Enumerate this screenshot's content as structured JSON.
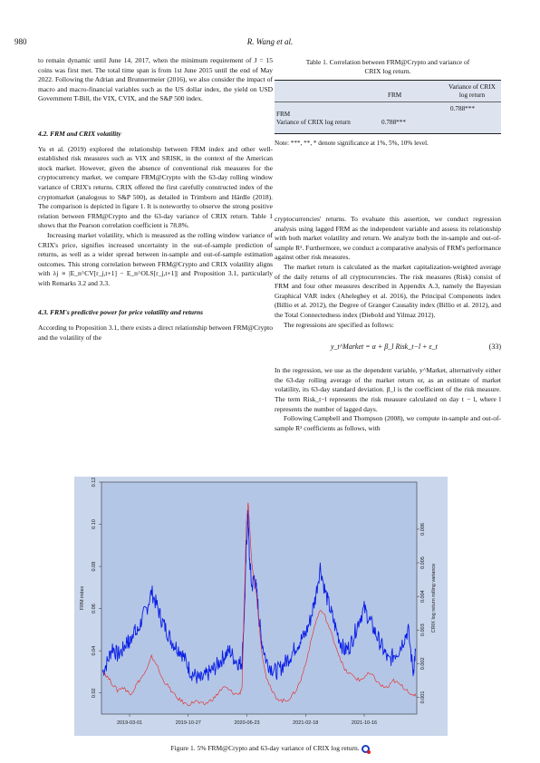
{
  "header": {
    "page_number": "980",
    "running_title": "R. Wang et al."
  },
  "left_column": {
    "intro_paragraph": "to remain dynamic until June 14, 2017, when the minimum requirement of J = 15 coins was first met. The total time span is from 1st June 2015 until the end of May 2022. Following the Adrian and Brunnermeier (2016), we also consider the impact of macro and macro-financial variables such as the US dollar index, the yield on USD Government T-Bill, the VIX, CVIX, and the S&P 500 index.",
    "section_42_title": "4.2.  FRM and CRIX volatility",
    "section_42_p1": "Yu et al. (2019) explored the relationship between FRM index and other well-established risk measures such as VIX and SRISK, in the context of the American stock market. However, given the absence of conventional risk measures for the cryptocurrency market, we compare FRM@Crypto with the 63-day rolling window variance of CRIX's returns. CRIX offered the first carefully constructed index of the cryptomarket (analogous to S&P 500), as detailed in Trimborn and Härdle (2018). The comparison is depicted in figure 1. It is noteworthy to observe the strong positive relation between FRM@Crypto and the 63-day variance of CRIX return. Table 1 shows that the Pearson correlation coefficient is 78.8%.",
    "section_42_p2": "Increasing market volatility, which is measured as the rolling window variance of CRIX's price, signifies increased uncertainty in the out-of-sample prediction of returns, as well as a wider spread between in-sample and out-of-sample estimation outcomes. This strong correlation between FRM@Crypto and CRIX volatility aligns with λj ∝ |E_n^CV[r_j,t+1] − E_n^OLS[r_j,t+1]| and Proposition 3.1, particularly with Remarks 3.2 and 3.3.",
    "section_43_title": "4.3.  FRM's predictive power for price volatility and returns",
    "section_43_p1": "According to Proposition 3.1, there exists a direct relationship between FRM@Crypto and the volatility of the"
  },
  "right_column": {
    "p1": "cryptocurrencies' returns. To evaluate this assertion, we conduct regression analysis using lagged FRM as the independent variable and assess its relationship with both market volatility and return. We analyze both the in-sample and out-of-sample R². Furthermore, we conduct a comparative analysis of FRM's performance against other risk measures.",
    "p2": "The market return is calculated as the market capitalization-weighted average of the daily returns of all cryptocurrencies. The risk measures (Risk) consist of FRM and four other measures described in Appendix A.3, namely the Bayesian Graphical VAR index (Ahelegbey et al. 2016), the Principal Components index (Billio et al. 2012), the Degree of Granger Causality index (Billio et al. 2012), and the Total Connectedness index (Diebold and Yilmaz 2012).",
    "p3": "The regressions are specified as follows:",
    "equation": "y_t^Market = α + β_l Risk_t−l + ε_t",
    "equation_number": "(33)",
    "p4": "In the regression, we use as the dependent variable, y^Market, alternatively either the 63-day rolling average of the market return or, as an estimate of market volatility, its 63-day standard deviation. β_l is the coefficient of the risk measure. The term Risk_t−l represents the risk measure calculated on day t − l, where l represents the number of lagged days.",
    "p5": "Following Campbell and Thompson (2008), we compute in-sample and out-of-sample R² coefficients as follows, with"
  },
  "table": {
    "caption_line1": "Table 1.  Correlation between FRM@Crypto and variance of",
    "caption_line2": "CRIX log return.",
    "col_header_1": "FRM",
    "col_header_2_line1": "Variance of CRIX",
    "col_header_2_line2": "log return",
    "row1_label": "FRM",
    "row1_value": "0.788***",
    "row2_label": "Variance of CRIX log return",
    "row2_value": "0.788***",
    "note": "Note: ***, **, * denote significance at 1%, 5%, 10% level."
  },
  "figure": {
    "caption": "Figure 1.  5% FRM@Crypto and 63-day variance of CRIX log return.",
    "icon": "quantlet-q-icon"
  },
  "chart_data": {
    "type": "line",
    "title": "",
    "xlabel": "",
    "ylabel": "FRM index",
    "y2label": "CRIX log return rolling variance",
    "x_tick_labels": [
      "2019-03-01",
      "2019-10-27",
      "2020-06-23",
      "2021-02-18",
      "2021-10-16"
    ],
    "x_ticks_days": [
      0,
      240,
      480,
      720,
      960
    ],
    "xlim_days": [
      -115,
      1175
    ],
    "ylim": [
      0.01,
      0.12
    ],
    "y_ticks": [
      "0.02",
      "0.04",
      "0.06",
      "0.08",
      "0.10",
      "0.12"
    ],
    "y2lim": [
      0.0005,
      0.0074
    ],
    "y2_ticks": [
      "0.001",
      "0.002",
      "0.003",
      "0.004",
      "0.005",
      "0.006"
    ],
    "background_color": "#b4c6e6",
    "series": [
      {
        "axis": "left",
        "color": "#0a1ee6",
        "x": [
          -110,
          -90,
          -70,
          -50,
          -30,
          -10,
          0,
          15,
          30,
          50,
          70,
          90,
          110,
          130,
          150,
          170,
          190,
          210,
          230,
          250,
          270,
          290,
          310,
          330,
          350,
          370,
          390,
          410,
          430,
          450,
          460,
          470,
          478,
          485,
          490,
          500,
          510,
          520,
          530,
          540,
          560,
          580,
          600,
          620,
          640,
          660,
          680,
          700,
          720,
          740,
          760,
          780,
          800,
          820,
          840,
          860,
          880,
          900,
          920,
          940,
          960,
          980,
          1000,
          1020,
          1040,
          1060,
          1080,
          1100,
          1120,
          1140,
          1160,
          1170
        ],
        "y": [
          0.03,
          0.035,
          0.042,
          0.038,
          0.04,
          0.045,
          0.043,
          0.05,
          0.048,
          0.055,
          0.06,
          0.068,
          0.062,
          0.055,
          0.05,
          0.045,
          0.042,
          0.04,
          0.035,
          0.03,
          0.028,
          0.026,
          0.028,
          0.03,
          0.032,
          0.035,
          0.038,
          0.04,
          0.036,
          0.034,
          0.035,
          0.06,
          0.09,
          0.105,
          0.085,
          0.07,
          0.075,
          0.068,
          0.055,
          0.045,
          0.035,
          0.032,
          0.03,
          0.032,
          0.035,
          0.038,
          0.042,
          0.045,
          0.048,
          0.055,
          0.065,
          0.08,
          0.068,
          0.06,
          0.052,
          0.045,
          0.04,
          0.042,
          0.048,
          0.055,
          0.06,
          0.055,
          0.05,
          0.045,
          0.04,
          0.035,
          0.038,
          0.04,
          0.045,
          0.05,
          0.03,
          0.04
        ]
      },
      {
        "axis": "right",
        "color": "#e8231e",
        "x": [
          -110,
          -90,
          -70,
          -50,
          -30,
          -10,
          0,
          15,
          30,
          50,
          70,
          90,
          110,
          130,
          150,
          170,
          190,
          210,
          230,
          250,
          270,
          290,
          310,
          330,
          350,
          370,
          390,
          410,
          430,
          450,
          460,
          470,
          478,
          485,
          490,
          500,
          510,
          520,
          530,
          540,
          560,
          580,
          600,
          620,
          640,
          660,
          680,
          700,
          720,
          740,
          760,
          780,
          800,
          820,
          840,
          860,
          880,
          900,
          920,
          940,
          960,
          980,
          1000,
          1020,
          1040,
          1060,
          1080,
          1100,
          1120,
          1140,
          1160,
          1170
        ],
        "y": [
          0.0018,
          0.0016,
          0.0014,
          0.0012,
          0.0013,
          0.0012,
          0.0011,
          0.0012,
          0.0014,
          0.0016,
          0.0018,
          0.0022,
          0.002,
          0.0016,
          0.0014,
          0.0012,
          0.001,
          0.0009,
          0.0008,
          0.0008,
          0.0009,
          0.0008,
          0.0008,
          0.0009,
          0.001,
          0.0012,
          0.0013,
          0.0012,
          0.0011,
          0.0011,
          0.0013,
          0.004,
          0.0062,
          0.0068,
          0.0062,
          0.005,
          0.0045,
          0.004,
          0.0032,
          0.0024,
          0.0016,
          0.0012,
          0.001,
          0.0009,
          0.0009,
          0.001,
          0.0012,
          0.0015,
          0.002,
          0.0026,
          0.0032,
          0.0036,
          0.0034,
          0.003,
          0.0026,
          0.0022,
          0.0018,
          0.0017,
          0.0016,
          0.0015,
          0.0016,
          0.0017,
          0.0016,
          0.0014,
          0.0013,
          0.0013,
          0.0015,
          0.0014,
          0.0013,
          0.0012,
          0.001,
          0.0011
        ]
      }
    ],
    "grid": false,
    "legend": "none"
  }
}
